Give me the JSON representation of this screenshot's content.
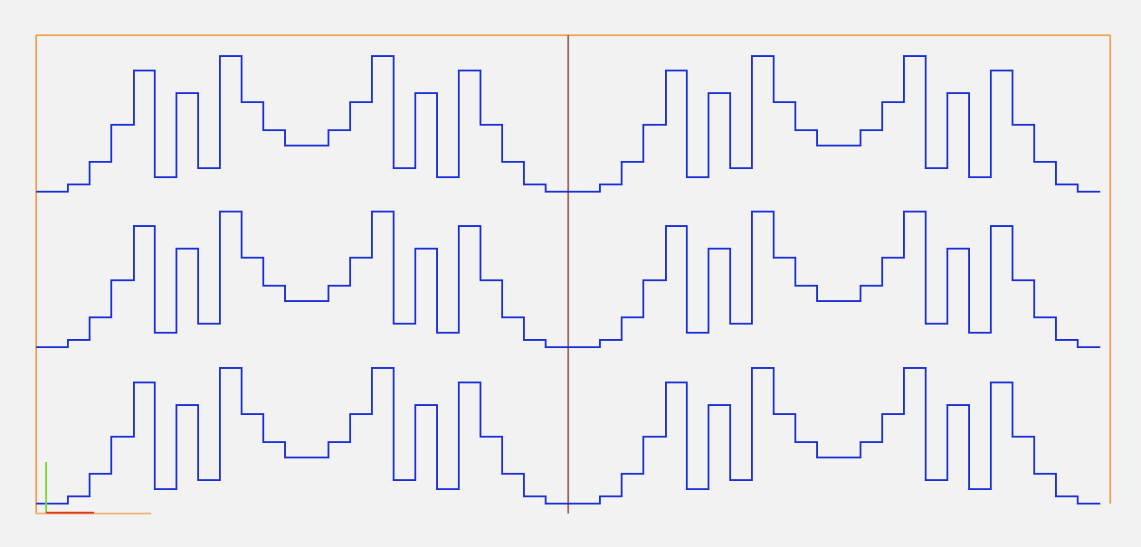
{
  "colors": {
    "background": "#f2f2f2",
    "frame": "#ef8a1c",
    "frame_light": "#f0a24a",
    "divider": "#7a3a3a",
    "profile": "#1a2fd6",
    "axis_x": "#e0301e",
    "axis_y": "#7ad62e"
  },
  "icons": {
    "axis_indicator": "xy-axis-icon"
  },
  "layout_grid": {
    "columns": 2,
    "rows": 3
  }
}
